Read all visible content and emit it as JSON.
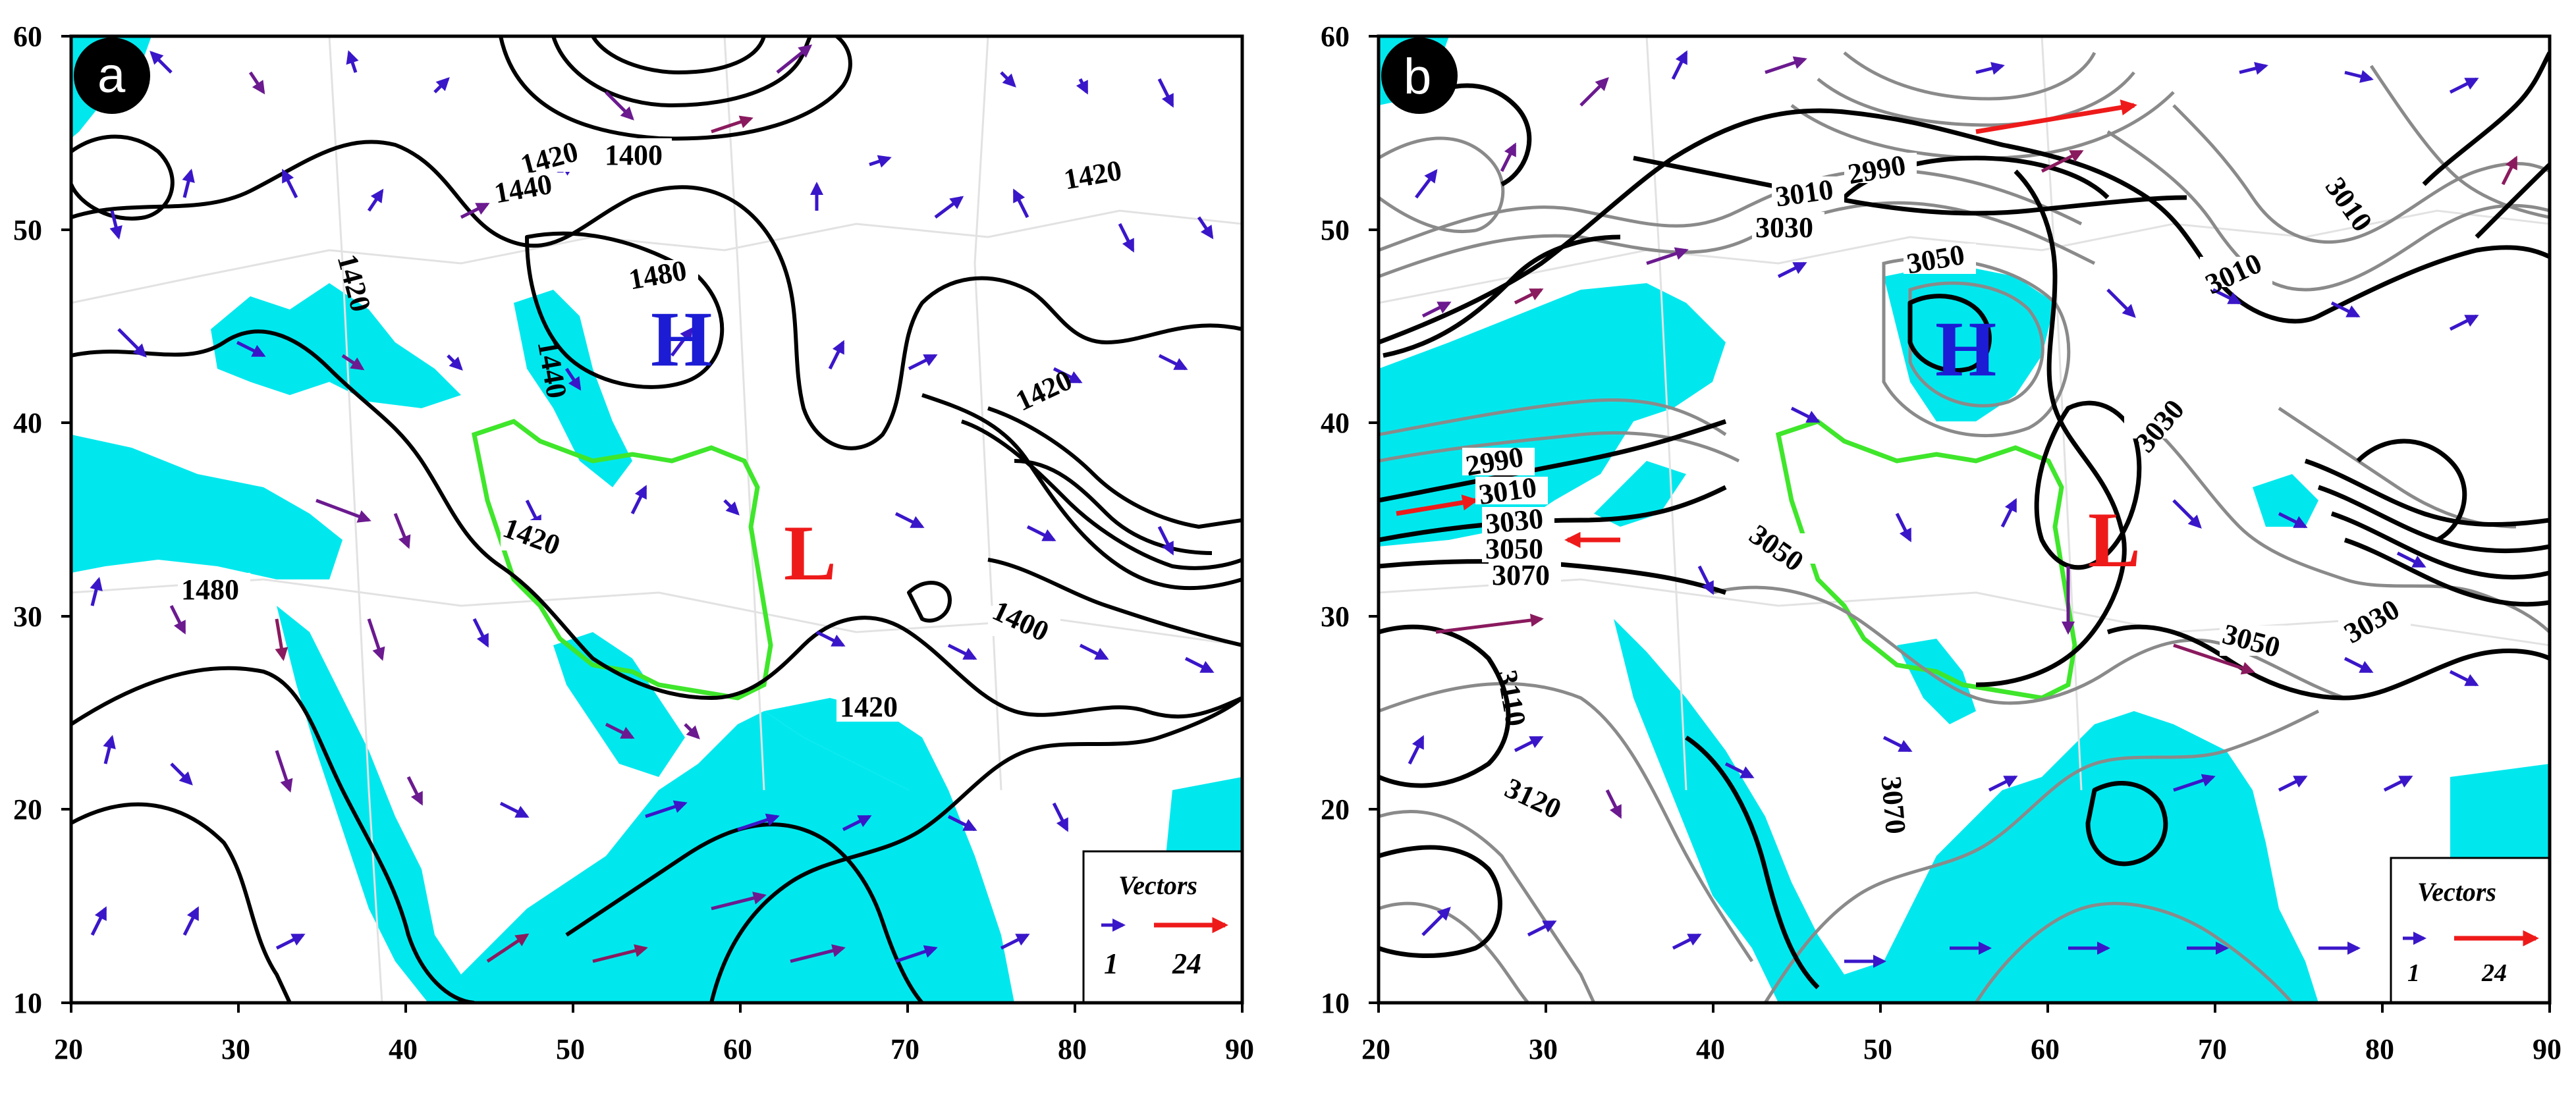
{
  "colors": {
    "shade": "#00e8ee",
    "boundary": "#3fe62b",
    "high": "#1c1cd4",
    "low": "#ee1a1a",
    "vector_blue": "#3a16c9",
    "vector_purple": "#6b1a8f",
    "vector_magenta": "#8a1a5e",
    "vector_red": "#ee1a1a",
    "contour_black": "#000000",
    "contour_gray": "#8a8a8a"
  },
  "axes": {
    "x_ticks": [
      "20",
      "30",
      "40",
      "50",
      "60",
      "70",
      "80",
      "90"
    ],
    "y_ticks": [
      "60",
      "50",
      "40",
      "30",
      "20",
      "10"
    ],
    "lon_range": [
      20,
      90
    ],
    "lat_range": [
      10,
      60
    ]
  },
  "panels": [
    {
      "letter": "a",
      "high_label": "H",
      "low_label": "L",
      "contour_labels": [
        "1420",
        "1400",
        "1440",
        "1420",
        "1480",
        "1420",
        "1440",
        "1420",
        "1480",
        "1400",
        "1420",
        "1420"
      ],
      "legend": {
        "title": "Vectors",
        "min": "1",
        "max": "24"
      }
    },
    {
      "letter": "b",
      "high_label": "H",
      "low_label": "L",
      "contour_labels": [
        "2990",
        "3010",
        "3030",
        "3050",
        "3010",
        "3010",
        "3030",
        "2990",
        "3010",
        "3030",
        "3050",
        "3070",
        "3050",
        "3110",
        "3120",
        "3070",
        "3050",
        "3030"
      ],
      "legend": {
        "title": "Vectors",
        "min": "1",
        "max": "24"
      }
    }
  ]
}
